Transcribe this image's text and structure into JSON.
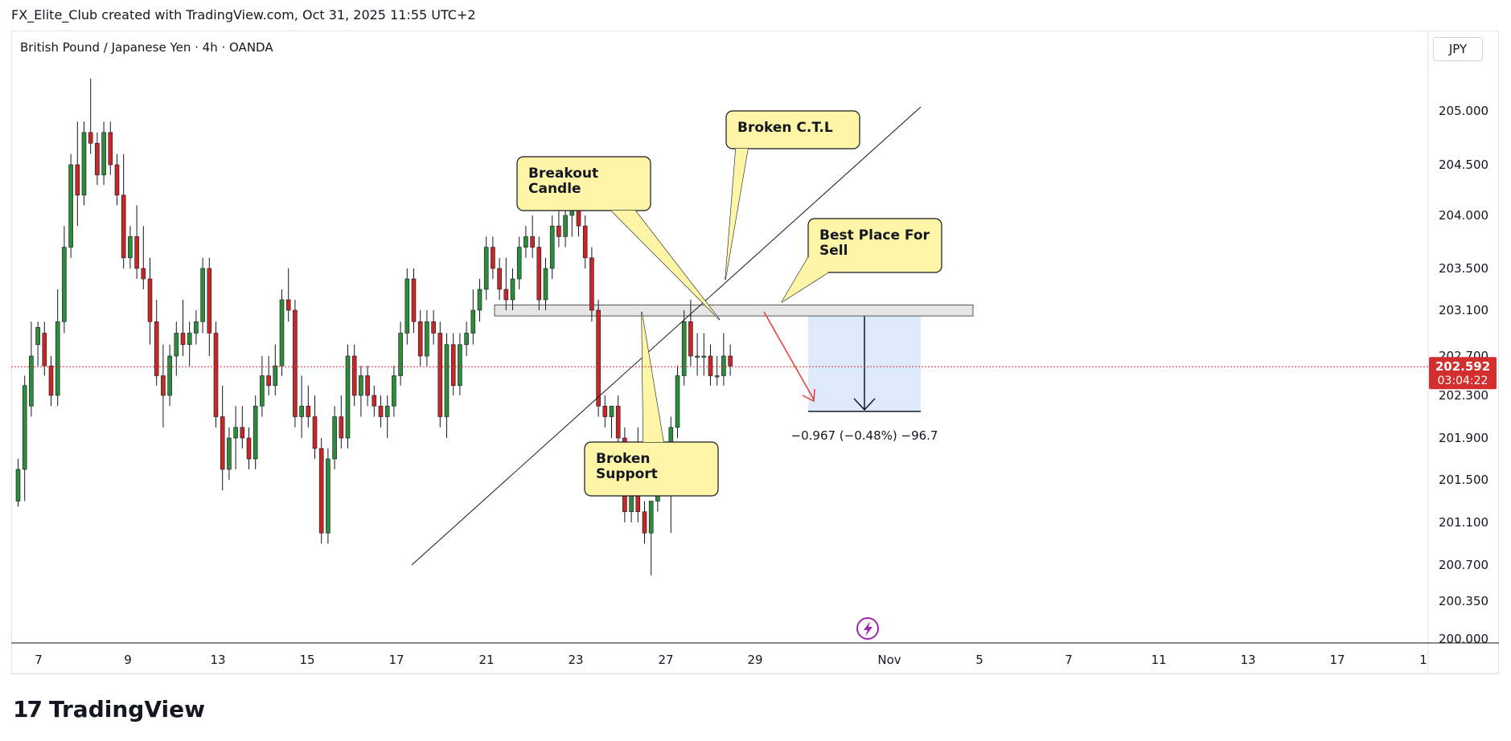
{
  "header": {
    "text": "FX_Elite_Club created with TradingView.com, Oct 31, 2025 11:55 UTC+2"
  },
  "symbol": {
    "text": "British Pound / Japanese Yen · 4h · OANDA"
  },
  "currency": {
    "label": "JPY"
  },
  "footer": {
    "brand": "TradingView"
  },
  "colors": {
    "up": "#2e8b3a",
    "down": "#c62828",
    "price_tag": "#d32f2f",
    "callout": "#fef5a6",
    "measure_box": "#ddeafc"
  },
  "chart_data": {
    "type": "candlestick",
    "price_axis": {
      "ticks": [
        "205.000",
        "204.500",
        "204.000",
        "203.500",
        "203.100",
        "202.700",
        "202.300",
        "201.900",
        "201.500",
        "201.100",
        "200.700",
        "200.350",
        "200.000"
      ]
    },
    "time_axis": {
      "ticks": [
        "7",
        "9",
        "13",
        "15",
        "17",
        "21",
        "23",
        "27",
        "29",
        "Nov",
        "5",
        "7",
        "11",
        "13",
        "17",
        "1"
      ]
    },
    "last_price": {
      "value": "202.592",
      "countdown": "03:04:22"
    },
    "annotations": {
      "breakout": "Breakout\nCandle",
      "broken_ctl": "Broken C.T.L",
      "best_sell": "Best Place For\nSell",
      "broken_support": "Broken\nSupport"
    },
    "measure_label": "−0.967 (−0.48%) −96.7",
    "support_zone": [
      203.05,
      203.15
    ],
    "candles": [
      {
        "o": 201.3,
        "h": 201.7,
        "l": 201.25,
        "c": 201.6
      },
      {
        "o": 201.6,
        "h": 202.5,
        "l": 201.3,
        "c": 202.4
      },
      {
        "o": 202.2,
        "h": 203.0,
        "l": 202.1,
        "c": 202.7
      },
      {
        "o": 202.8,
        "h": 203.0,
        "l": 202.6,
        "c": 202.95
      },
      {
        "o": 202.9,
        "h": 203.0,
        "l": 202.5,
        "c": 202.6
      },
      {
        "o": 202.6,
        "h": 202.7,
        "l": 202.2,
        "c": 202.3
      },
      {
        "o": 202.3,
        "h": 203.3,
        "l": 202.2,
        "c": 203.0
      },
      {
        "o": 203.0,
        "h": 203.9,
        "l": 202.9,
        "c": 203.7
      },
      {
        "o": 203.7,
        "h": 204.6,
        "l": 203.6,
        "c": 204.5
      },
      {
        "o": 204.5,
        "h": 204.9,
        "l": 203.9,
        "c": 204.2
      },
      {
        "o": 204.2,
        "h": 204.9,
        "l": 204.1,
        "c": 204.8
      },
      {
        "o": 204.8,
        "h": 205.3,
        "l": 204.6,
        "c": 204.7
      },
      {
        "o": 204.7,
        "h": 204.8,
        "l": 204.3,
        "c": 204.4
      },
      {
        "o": 204.4,
        "h": 204.9,
        "l": 204.3,
        "c": 204.8
      },
      {
        "o": 204.8,
        "h": 204.9,
        "l": 204.4,
        "c": 204.5
      },
      {
        "o": 204.5,
        "h": 204.6,
        "l": 204.1,
        "c": 204.2
      },
      {
        "o": 204.2,
        "h": 204.6,
        "l": 203.5,
        "c": 203.6
      },
      {
        "o": 203.6,
        "h": 203.9,
        "l": 203.5,
        "c": 203.8
      },
      {
        "o": 203.8,
        "h": 204.1,
        "l": 203.4,
        "c": 203.5
      },
      {
        "o": 203.5,
        "h": 203.9,
        "l": 203.3,
        "c": 203.4
      },
      {
        "o": 203.4,
        "h": 203.6,
        "l": 202.8,
        "c": 203.0
      },
      {
        "o": 203.0,
        "h": 203.2,
        "l": 202.4,
        "c": 202.5
      },
      {
        "o": 202.5,
        "h": 202.8,
        "l": 202.0,
        "c": 202.3
      },
      {
        "o": 202.3,
        "h": 202.8,
        "l": 202.2,
        "c": 202.7
      },
      {
        "o": 202.7,
        "h": 203.0,
        "l": 202.5,
        "c": 202.9
      },
      {
        "o": 202.9,
        "h": 203.2,
        "l": 202.7,
        "c": 202.8
      },
      {
        "o": 202.8,
        "h": 203.0,
        "l": 202.6,
        "c": 202.9
      },
      {
        "o": 202.9,
        "h": 203.1,
        "l": 202.8,
        "c": 203.0
      },
      {
        "o": 203.0,
        "h": 203.6,
        "l": 202.9,
        "c": 203.5
      },
      {
        "o": 203.5,
        "h": 203.6,
        "l": 202.7,
        "c": 202.9
      },
      {
        "o": 202.9,
        "h": 203.0,
        "l": 202.0,
        "c": 202.1
      },
      {
        "o": 202.1,
        "h": 202.4,
        "l": 201.4,
        "c": 201.6
      },
      {
        "o": 201.6,
        "h": 202.0,
        "l": 201.5,
        "c": 201.9
      },
      {
        "o": 201.9,
        "h": 202.2,
        "l": 201.6,
        "c": 202.0
      },
      {
        "o": 202.0,
        "h": 202.2,
        "l": 201.8,
        "c": 201.9
      },
      {
        "o": 201.9,
        "h": 202.0,
        "l": 201.6,
        "c": 201.7
      },
      {
        "o": 201.7,
        "h": 202.3,
        "l": 201.6,
        "c": 202.2
      },
      {
        "o": 202.2,
        "h": 202.7,
        "l": 202.1,
        "c": 202.5
      },
      {
        "o": 202.5,
        "h": 202.7,
        "l": 202.3,
        "c": 202.4
      },
      {
        "o": 202.4,
        "h": 202.8,
        "l": 202.3,
        "c": 202.6
      },
      {
        "o": 202.6,
        "h": 203.3,
        "l": 202.5,
        "c": 203.2
      },
      {
        "o": 203.2,
        "h": 203.5,
        "l": 203.0,
        "c": 203.1
      },
      {
        "o": 203.1,
        "h": 203.2,
        "l": 202.0,
        "c": 202.1
      },
      {
        "o": 202.1,
        "h": 202.5,
        "l": 201.9,
        "c": 202.2
      },
      {
        "o": 202.2,
        "h": 202.4,
        "l": 202.0,
        "c": 202.1
      },
      {
        "o": 202.1,
        "h": 202.3,
        "l": 201.7,
        "c": 201.8
      },
      {
        "o": 201.8,
        "h": 201.9,
        "l": 200.9,
        "c": 201.0
      },
      {
        "o": 201.0,
        "h": 201.8,
        "l": 200.9,
        "c": 201.7
      },
      {
        "o": 201.7,
        "h": 202.2,
        "l": 201.6,
        "c": 202.1
      },
      {
        "o": 202.1,
        "h": 202.3,
        "l": 201.8,
        "c": 201.9
      },
      {
        "o": 201.9,
        "h": 202.8,
        "l": 201.8,
        "c": 202.7
      },
      {
        "o": 202.7,
        "h": 202.8,
        "l": 202.2,
        "c": 202.3
      },
      {
        "o": 202.3,
        "h": 202.6,
        "l": 202.1,
        "c": 202.5
      },
      {
        "o": 202.5,
        "h": 202.6,
        "l": 202.2,
        "c": 202.3
      },
      {
        "o": 202.3,
        "h": 202.4,
        "l": 202.1,
        "c": 202.2
      },
      {
        "o": 202.2,
        "h": 202.3,
        "l": 202.0,
        "c": 202.1
      },
      {
        "o": 202.1,
        "h": 202.3,
        "l": 201.9,
        "c": 202.2
      },
      {
        "o": 202.2,
        "h": 202.6,
        "l": 202.1,
        "c": 202.5
      },
      {
        "o": 202.5,
        "h": 203.0,
        "l": 202.4,
        "c": 202.9
      },
      {
        "o": 202.9,
        "h": 203.5,
        "l": 202.8,
        "c": 203.4
      },
      {
        "o": 203.4,
        "h": 203.5,
        "l": 202.9,
        "c": 203.0
      },
      {
        "o": 203.0,
        "h": 203.1,
        "l": 202.6,
        "c": 202.7
      },
      {
        "o": 202.7,
        "h": 203.1,
        "l": 202.6,
        "c": 203.0
      },
      {
        "o": 203.0,
        "h": 203.1,
        "l": 202.8,
        "c": 202.9
      },
      {
        "o": 202.9,
        "h": 203.0,
        "l": 202.0,
        "c": 202.1
      },
      {
        "o": 202.1,
        "h": 202.9,
        "l": 201.9,
        "c": 202.8
      },
      {
        "o": 202.8,
        "h": 202.9,
        "l": 202.3,
        "c": 202.4
      },
      {
        "o": 202.4,
        "h": 202.9,
        "l": 202.3,
        "c": 202.8
      },
      {
        "o": 202.8,
        "h": 203.0,
        "l": 202.7,
        "c": 202.9
      },
      {
        "o": 202.9,
        "h": 203.3,
        "l": 202.8,
        "c": 203.1
      },
      {
        "o": 203.1,
        "h": 203.4,
        "l": 203.0,
        "c": 203.3
      },
      {
        "o": 203.3,
        "h": 203.8,
        "l": 203.2,
        "c": 203.7
      },
      {
        "o": 203.7,
        "h": 203.8,
        "l": 203.4,
        "c": 203.5
      },
      {
        "o": 203.5,
        "h": 203.6,
        "l": 203.2,
        "c": 203.3
      },
      {
        "o": 203.3,
        "h": 203.6,
        "l": 203.1,
        "c": 203.2
      },
      {
        "o": 203.2,
        "h": 203.5,
        "l": 203.1,
        "c": 203.4
      },
      {
        "o": 203.4,
        "h": 203.8,
        "l": 203.3,
        "c": 203.7
      },
      {
        "o": 203.7,
        "h": 203.9,
        "l": 203.6,
        "c": 203.8
      },
      {
        "o": 203.8,
        "h": 204.0,
        "l": 203.6,
        "c": 203.7
      },
      {
        "o": 203.7,
        "h": 203.8,
        "l": 203.1,
        "c": 203.2
      },
      {
        "o": 203.2,
        "h": 203.6,
        "l": 203.1,
        "c": 203.5
      },
      {
        "o": 203.5,
        "h": 204.0,
        "l": 203.4,
        "c": 203.9
      },
      {
        "o": 203.9,
        "h": 204.2,
        "l": 203.7,
        "c": 203.8
      },
      {
        "o": 203.8,
        "h": 204.1,
        "l": 203.7,
        "c": 204.0
      },
      {
        "o": 204.0,
        "h": 204.3,
        "l": 203.8,
        "c": 204.1
      },
      {
        "o": 204.1,
        "h": 204.2,
        "l": 203.8,
        "c": 203.9
      },
      {
        "o": 203.9,
        "h": 204.0,
        "l": 203.5,
        "c": 203.6
      },
      {
        "o": 203.6,
        "h": 203.7,
        "l": 203.0,
        "c": 203.1
      },
      {
        "o": 203.1,
        "h": 203.2,
        "l": 202.1,
        "c": 202.2
      },
      {
        "o": 202.2,
        "h": 202.3,
        "l": 202.0,
        "c": 202.1
      },
      {
        "o": 202.1,
        "h": 202.2,
        "l": 201.9,
        "c": 202.2
      },
      {
        "o": 202.2,
        "h": 202.3,
        "l": 201.8,
        "c": 201.9
      },
      {
        "o": 201.9,
        "h": 202.0,
        "l": 201.1,
        "c": 201.2
      },
      {
        "o": 201.2,
        "h": 201.6,
        "l": 201.1,
        "c": 201.5
      },
      {
        "o": 201.5,
        "h": 202.0,
        "l": 201.1,
        "c": 201.2
      },
      {
        "o": 201.2,
        "h": 201.3,
        "l": 200.9,
        "c": 201.0
      },
      {
        "o": 201.0,
        "h": 201.3,
        "l": 200.6,
        "c": 201.3
      },
      {
        "o": 201.3,
        "h": 201.6,
        "l": 201.2,
        "c": 201.5
      },
      {
        "o": 201.5,
        "h": 201.8,
        "l": 201.4,
        "c": 201.6
      },
      {
        "o": 201.6,
        "h": 202.1,
        "l": 201.0,
        "c": 202.0
      },
      {
        "o": 202.0,
        "h": 202.6,
        "l": 201.9,
        "c": 202.5
      },
      {
        "o": 202.5,
        "h": 203.1,
        "l": 202.4,
        "c": 203.0
      },
      {
        "o": 203.0,
        "h": 203.2,
        "l": 202.6,
        "c": 202.7
      },
      {
        "o": 202.7,
        "h": 202.9,
        "l": 202.5,
        "c": 202.7
      },
      {
        "o": 202.7,
        "h": 202.9,
        "l": 202.5,
        "c": 202.7
      },
      {
        "o": 202.7,
        "h": 202.8,
        "l": 202.4,
        "c": 202.5
      },
      {
        "o": 202.5,
        "h": 202.7,
        "l": 202.4,
        "c": 202.5
      },
      {
        "o": 202.5,
        "h": 202.9,
        "l": 202.4,
        "c": 202.7
      },
      {
        "o": 202.7,
        "h": 202.8,
        "l": 202.5,
        "c": 202.6
      }
    ]
  }
}
